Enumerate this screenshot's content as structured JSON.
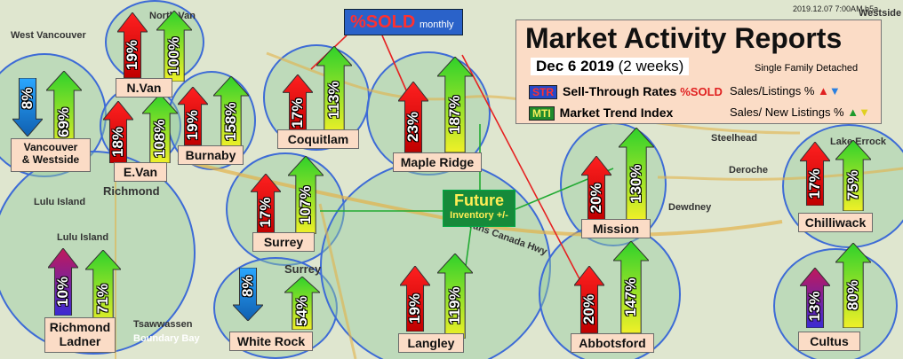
{
  "timestamp": "2019.12.07  7:00AM b5a",
  "report": {
    "title": "Market  Activity Reports",
    "date_bold": "Dec 6 2019",
    "date_normal": "(2 weeks)",
    "subtitle": "Single Family Detached",
    "str_tag": "STR",
    "str_text": "Sell-Through Rates",
    "str_pct": "%SOLD",
    "str_right": "Sales/Listings %",
    "mti_tag": "MTI",
    "mti_text": "Market Trend Index",
    "mti_right": "Sales/ New Listings %"
  },
  "sold_box": {
    "big": "%SOLD",
    "small": "monthly"
  },
  "future_box": {
    "big": "Future",
    "small": "Inventory +/-"
  },
  "places": [
    "West Vancouver",
    "North Van",
    "Richmond",
    "Lulu Island",
    "Lulu Island",
    "Tsawwassen",
    "Boundary Bay",
    "Surrey",
    "Trans Canada Hwy",
    "Deroche",
    "Lake Errock",
    "Dewdney",
    "Westside",
    "Steelhead"
  ],
  "regions": [
    {
      "name": "Vancouver\n& Westside",
      "str": "8%",
      "mti": "69%",
      "str_dir": "down",
      "str_color": "blue"
    },
    {
      "name": "N.Van",
      "str": "19%",
      "mti": "100%",
      "str_dir": "up",
      "str_color": "red"
    },
    {
      "name": "E.Van",
      "str": "18%",
      "mti": "108%",
      "str_dir": "up",
      "str_color": "red"
    },
    {
      "name": "Burnaby",
      "str": "19%",
      "mti": "158%",
      "str_dir": "up",
      "str_color": "red"
    },
    {
      "name": "Coquitlam",
      "str": "17%",
      "mti": "113%",
      "str_dir": "up",
      "str_color": "red"
    },
    {
      "name": "Maple Ridge",
      "str": "23%",
      "mti": "187%",
      "str_dir": "up",
      "str_color": "red"
    },
    {
      "name": "Surrey",
      "str": "17%",
      "mti": "107%",
      "str_dir": "up",
      "str_color": "red"
    },
    {
      "name": "Mission",
      "str": "20%",
      "mti": "130%",
      "str_dir": "up",
      "str_color": "red"
    },
    {
      "name": "Chilliwack",
      "str": "17%",
      "mti": "75%",
      "str_dir": "up",
      "str_color": "red"
    },
    {
      "name": "Richmond\nLadner",
      "str": "10%",
      "mti": "71%",
      "str_dir": "up",
      "str_color": "purple"
    },
    {
      "name": "White Rock",
      "str": "8%",
      "mti": "54%",
      "str_dir": "down",
      "str_color": "blue"
    },
    {
      "name": "Langley",
      "str": "19%",
      "mti": "119%",
      "str_dir": "up",
      "str_color": "red"
    },
    {
      "name": "Abbotsford",
      "str": "20%",
      "mti": "147%",
      "str_dir": "up",
      "str_color": "red"
    },
    {
      "name": "Cultus",
      "str": "13%",
      "mti": "80%",
      "str_dir": "up",
      "str_color": "purple"
    }
  ]
}
